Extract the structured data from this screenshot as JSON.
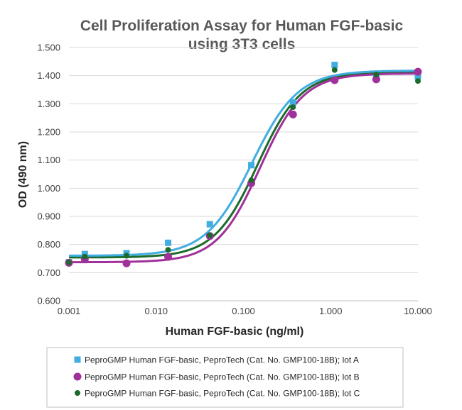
{
  "chart_data": {
    "type": "scatter",
    "title": "Cell Proliferation Assay for Human FGF-basic",
    "subtitle": "using 3T3 cells",
    "xlabel": "Human FGF-basic (ng/ml)",
    "ylabel": "OD (490 nm)",
    "x_scale": "log",
    "xlim": [
      0.001,
      10
    ],
    "ylim": [
      0.6,
      1.5
    ],
    "x_ticks": [
      "0.001",
      "0.010",
      "0.100",
      "1.000",
      "10.000"
    ],
    "x_tick_values": [
      0.001,
      0.01,
      0.1,
      1,
      10
    ],
    "y_ticks": [
      "0.600",
      "0.700",
      "0.800",
      "0.900",
      "1.000",
      "1.100",
      "1.200",
      "1.300",
      "1.400",
      "1.500"
    ],
    "y_tick_values": [
      0.6,
      0.7,
      0.8,
      0.9,
      1.0,
      1.1,
      1.2,
      1.3,
      1.4,
      1.5
    ],
    "grid": "horizontal",
    "legend_position": "bottom",
    "series": [
      {
        "name": "PeproGMP Human FGF-basic, PeproTech (Cat. No. GMP100-18B); lot A",
        "color": "#41ADE0",
        "marker": "square",
        "x": [
          0.001,
          0.00152,
          0.00457,
          0.0137,
          0.0412,
          0.123,
          0.37,
          1.11,
          3.33,
          10
        ],
        "y": [
          0.737,
          0.766,
          0.769,
          0.806,
          0.872,
          1.082,
          1.305,
          1.438,
          1.392,
          1.397
        ],
        "fit": {
          "bottom": 0.76,
          "top": 1.418,
          "ec50": 0.125,
          "hill": 1.65
        }
      },
      {
        "name": "PeproGMP Human FGF-basic, PeproTech (Cat. No. GMP100-18B); lot B",
        "color": "#A0309A",
        "marker": "circle",
        "x": [
          0.001,
          0.00152,
          0.00457,
          0.0137,
          0.0412,
          0.123,
          0.37,
          1.11,
          3.33,
          10
        ],
        "y": [
          0.735,
          0.748,
          0.733,
          0.756,
          0.83,
          1.018,
          1.262,
          1.384,
          1.387,
          1.414
        ],
        "fit": {
          "bottom": 0.737,
          "top": 1.408,
          "ec50": 0.155,
          "hill": 1.75
        }
      },
      {
        "name": "PeproGMP Human FGF-basic, PeproTech (Cat. No. GMP100-18B); lot C",
        "color": "#1B6B2A",
        "marker": "circle",
        "x": [
          0.001,
          0.00152,
          0.00457,
          0.0137,
          0.0412,
          0.123,
          0.37,
          1.11,
          3.33,
          10
        ],
        "y": [
          0.736,
          0.757,
          0.76,
          0.781,
          0.833,
          1.028,
          1.288,
          1.42,
          1.404,
          1.381
        ],
        "fit": {
          "bottom": 0.754,
          "top": 1.412,
          "ec50": 0.145,
          "hill": 1.75
        }
      }
    ]
  }
}
